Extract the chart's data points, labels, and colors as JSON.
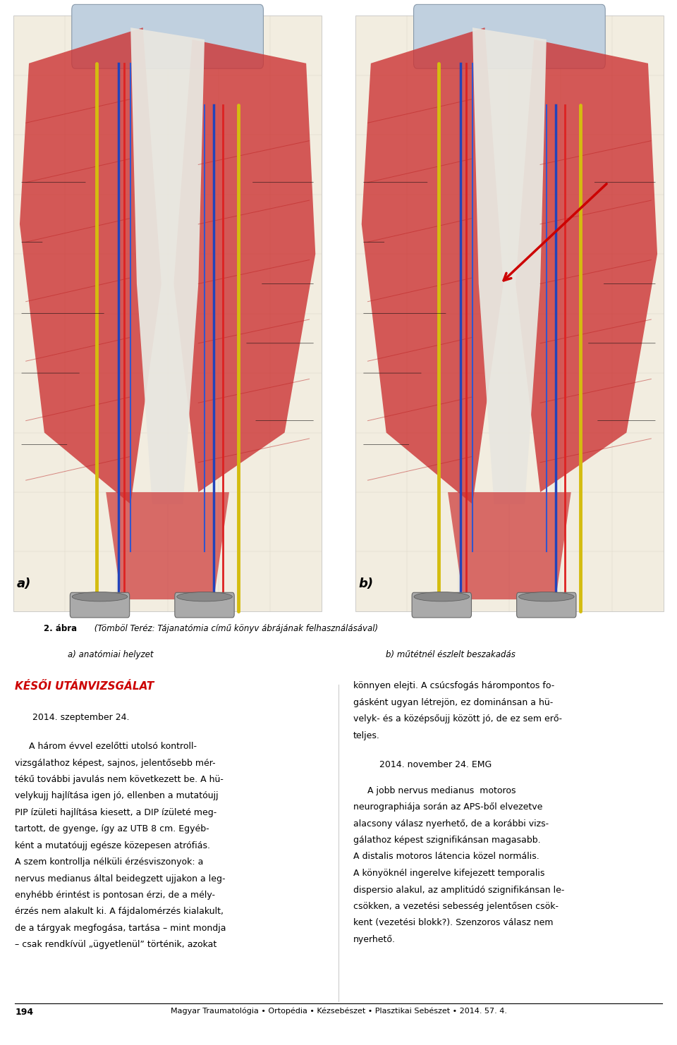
{
  "page_width": 9.6,
  "page_height": 14.82,
  "bg_color": "#ffffff",
  "figure_caption_bold": "2. ábra",
  "figure_caption_italic": " (Tömböl Teréz: Tájanatómia című könyv ábrájának felhasználásával)",
  "subcaption_a": "a) anatómiai helyzet",
  "subcaption_b": "b) műtétnél észlelt beszakadás",
  "section_title": "KÉSŐI UTÁNVIZSGÁLAT",
  "date1": "2014. szeptember 24.",
  "date2": "2014. november 24. EMG",
  "footer_page": "194",
  "footer_text": "Magyar Traumatológia • Ortopédia • Kézsebészet • Plasztikai Sebészet • 2014. 57. 4.",
  "section_title_color": "#cc0000",
  "left_lines": [
    "     A három évvel ezelőtti utolsó kontroll-",
    "vizsgálathoz képest, sajnos, jelentősebb mér-",
    "tékű további javulás nem következett be. A hü-",
    "velykujj hajlítása igen jó, ellenben a mutatóujj",
    "PIP ízületi hajlítása kiesett, a DIP ízületé meg-",
    "tartott, de gyenge, így az UTB 8 cm. Egyéb-",
    "ként a mutatóujj egésze közepesen atrófiás.",
    "A szem kontrollja nélküli érzésviszonyok: a",
    "nervus medianus által beidegzett ujjakon a leg-",
    "enyhébb érintést is pontosan érzi, de a mély-",
    "érzés nem alakult ki. A fájdalomérzés kialakult,",
    "de a tárgyak megfogása, tartása – mint mondja",
    "– csak rendkívül „ügyetlenül” történik, azokat"
  ],
  "right_lines1": [
    "könnyen elejti. A csúcsfogás hárompontos fo-",
    "gásként ugyan létrejön, ez dominánsan a hü-",
    "velyk- és a középsőujj között jó, de ez sem erő-",
    "teljes."
  ],
  "right_lines2": [
    "     A jobb nervus medianus  motoros",
    "neurographiája során az APS-ből elvezetve",
    "alacsony válasz nyerhető, de a korábbi vizs-",
    "gálathoz képest szignifikánsan magasabb.",
    "A distalis motoros látencia közel normális.",
    "A könyöknél ingerelve kifejezett temporalis",
    "dispersio alakul, az amplitúdó szignifikánsan le-",
    "csökken, a vezetési sebesség jelentősen csök-",
    "kent (vezetési blokk?). Szenzoros válasz nem",
    "nyerhető."
  ]
}
